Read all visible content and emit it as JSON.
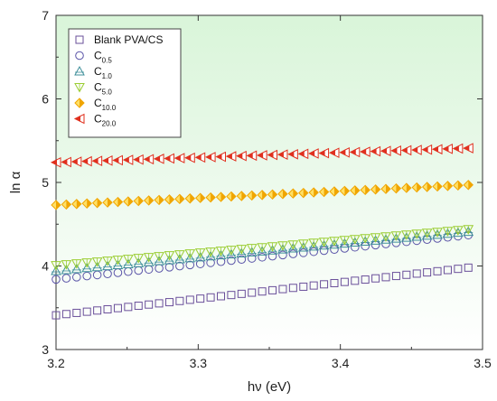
{
  "chart_data": {
    "type": "scatter",
    "title": "",
    "xlabel": "hν (eV)",
    "ylabel": "ln α",
    "xlim": [
      3.2,
      3.5
    ],
    "ylim": [
      3,
      7
    ],
    "x_ticks": [
      "3.2",
      "3.3",
      "3.4",
      "3.5"
    ],
    "y_ticks": [
      "3",
      "4",
      "5",
      "6",
      "7"
    ],
    "grid": false,
    "background": "gradient light green (top) to white (bottom)",
    "legend_position": "top-left",
    "x_range": [
      3.2,
      3.49
    ],
    "points_per_series": 41,
    "series": [
      {
        "name": "Blank PVA/CS",
        "name_main": "Blank PVA/CS",
        "name_sub": "",
        "marker": "square-open",
        "color": "#6a4f9a",
        "y_start": 3.41,
        "y_end": 3.98
      },
      {
        "name": "C0.5",
        "name_main": "C",
        "name_sub": "0.5",
        "marker": "circle-open",
        "color": "#5a54a8",
        "y_start": 3.84,
        "y_end": 4.37
      },
      {
        "name": "C1.0",
        "name_main": "C",
        "name_sub": "1.0",
        "marker": "triangle-up-open",
        "color": "#3f8f9a",
        "y_start": 3.94,
        "y_end": 4.41
      },
      {
        "name": "C5.0",
        "name_main": "C",
        "name_sub": "5.0",
        "marker": "triangle-down-open",
        "color": "#9acd32",
        "y_start": 4.01,
        "y_end": 4.44
      },
      {
        "name": "C10.0",
        "name_main": "C",
        "name_sub": "10.0",
        "marker": "diamond-half",
        "color": "#f0a500",
        "y_start": 4.73,
        "y_end": 4.97
      },
      {
        "name": "C20.0",
        "name_main": "C",
        "name_sub": "20.0",
        "marker": "triangle-left-half",
        "color": "#e0301e",
        "y_start": 5.24,
        "y_end": 5.41
      }
    ]
  }
}
